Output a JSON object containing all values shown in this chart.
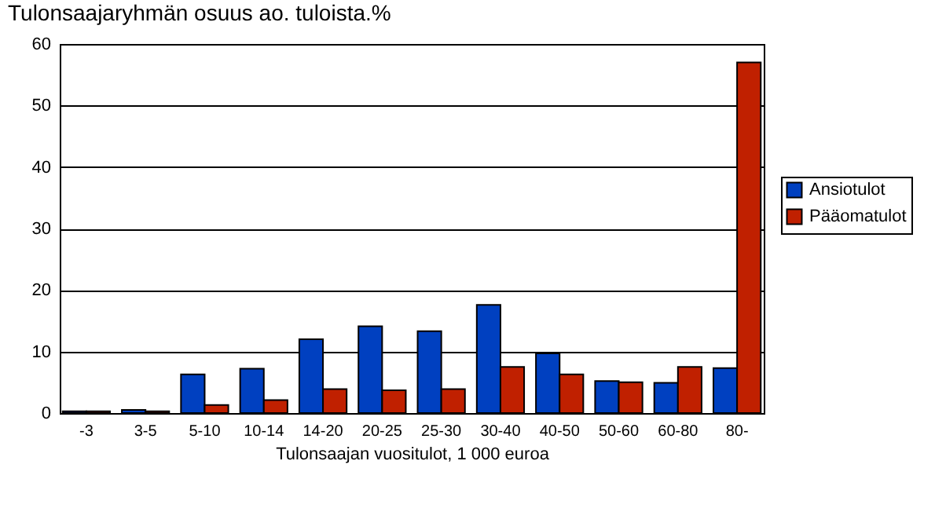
{
  "chart_data": {
    "type": "bar",
    "title": "Tulonsaajaryhmän osuus ao. tuloista.%",
    "xlabel": "Tulonsaajan vuositulot, 1 000 euroa",
    "categories": [
      "-3",
      "3-5",
      "5-10",
      "10-14",
      "14-20",
      "20-25",
      "25-30",
      "30-40",
      "40-50",
      "50-60",
      "60-80",
      "80-"
    ],
    "series": [
      {
        "name": "Ansiotulot",
        "color": "#0040c0",
        "values": [
          0.3,
          0.5,
          6.3,
          7.2,
          12.0,
          14.1,
          13.3,
          17.6,
          9.7,
          5.2,
          4.9,
          7.3
        ]
      },
      {
        "name": "Pääomatulot",
        "color": "#c02000",
        "values": [
          0.3,
          0.3,
          1.3,
          2.1,
          3.9,
          3.7,
          3.9,
          7.5,
          6.3,
          5.0,
          7.5,
          57.0
        ]
      }
    ],
    "ylim": [
      0,
      60
    ],
    "yticks": [
      0,
      10,
      20,
      30,
      40,
      50,
      60
    ],
    "grid": "y",
    "legend": "right"
  }
}
